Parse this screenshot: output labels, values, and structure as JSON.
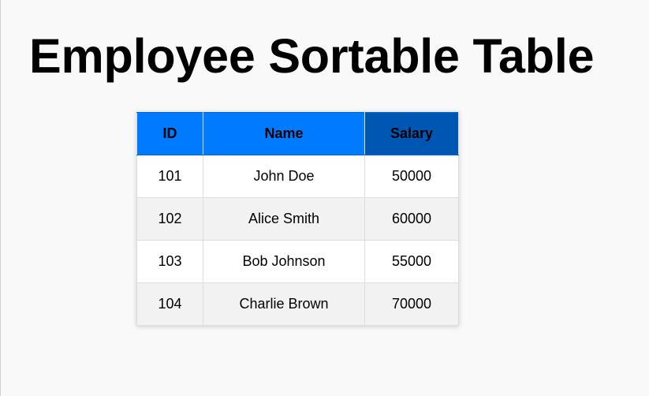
{
  "page": {
    "title": "Employee Sortable Table"
  },
  "table": {
    "headers": {
      "id": "ID",
      "name": "Name",
      "salary": "Salary"
    },
    "rows": [
      {
        "id": "101",
        "name": "John Doe",
        "salary": "50000"
      },
      {
        "id": "102",
        "name": "Alice Smith",
        "salary": "60000"
      },
      {
        "id": "103",
        "name": "Bob Johnson",
        "salary": "55000"
      },
      {
        "id": "104",
        "name": "Charlie Brown",
        "salary": "70000"
      }
    ],
    "header_color": "#007bff",
    "active_header_color": "#0056b3",
    "stripe_color": "#f2f2f2"
  }
}
